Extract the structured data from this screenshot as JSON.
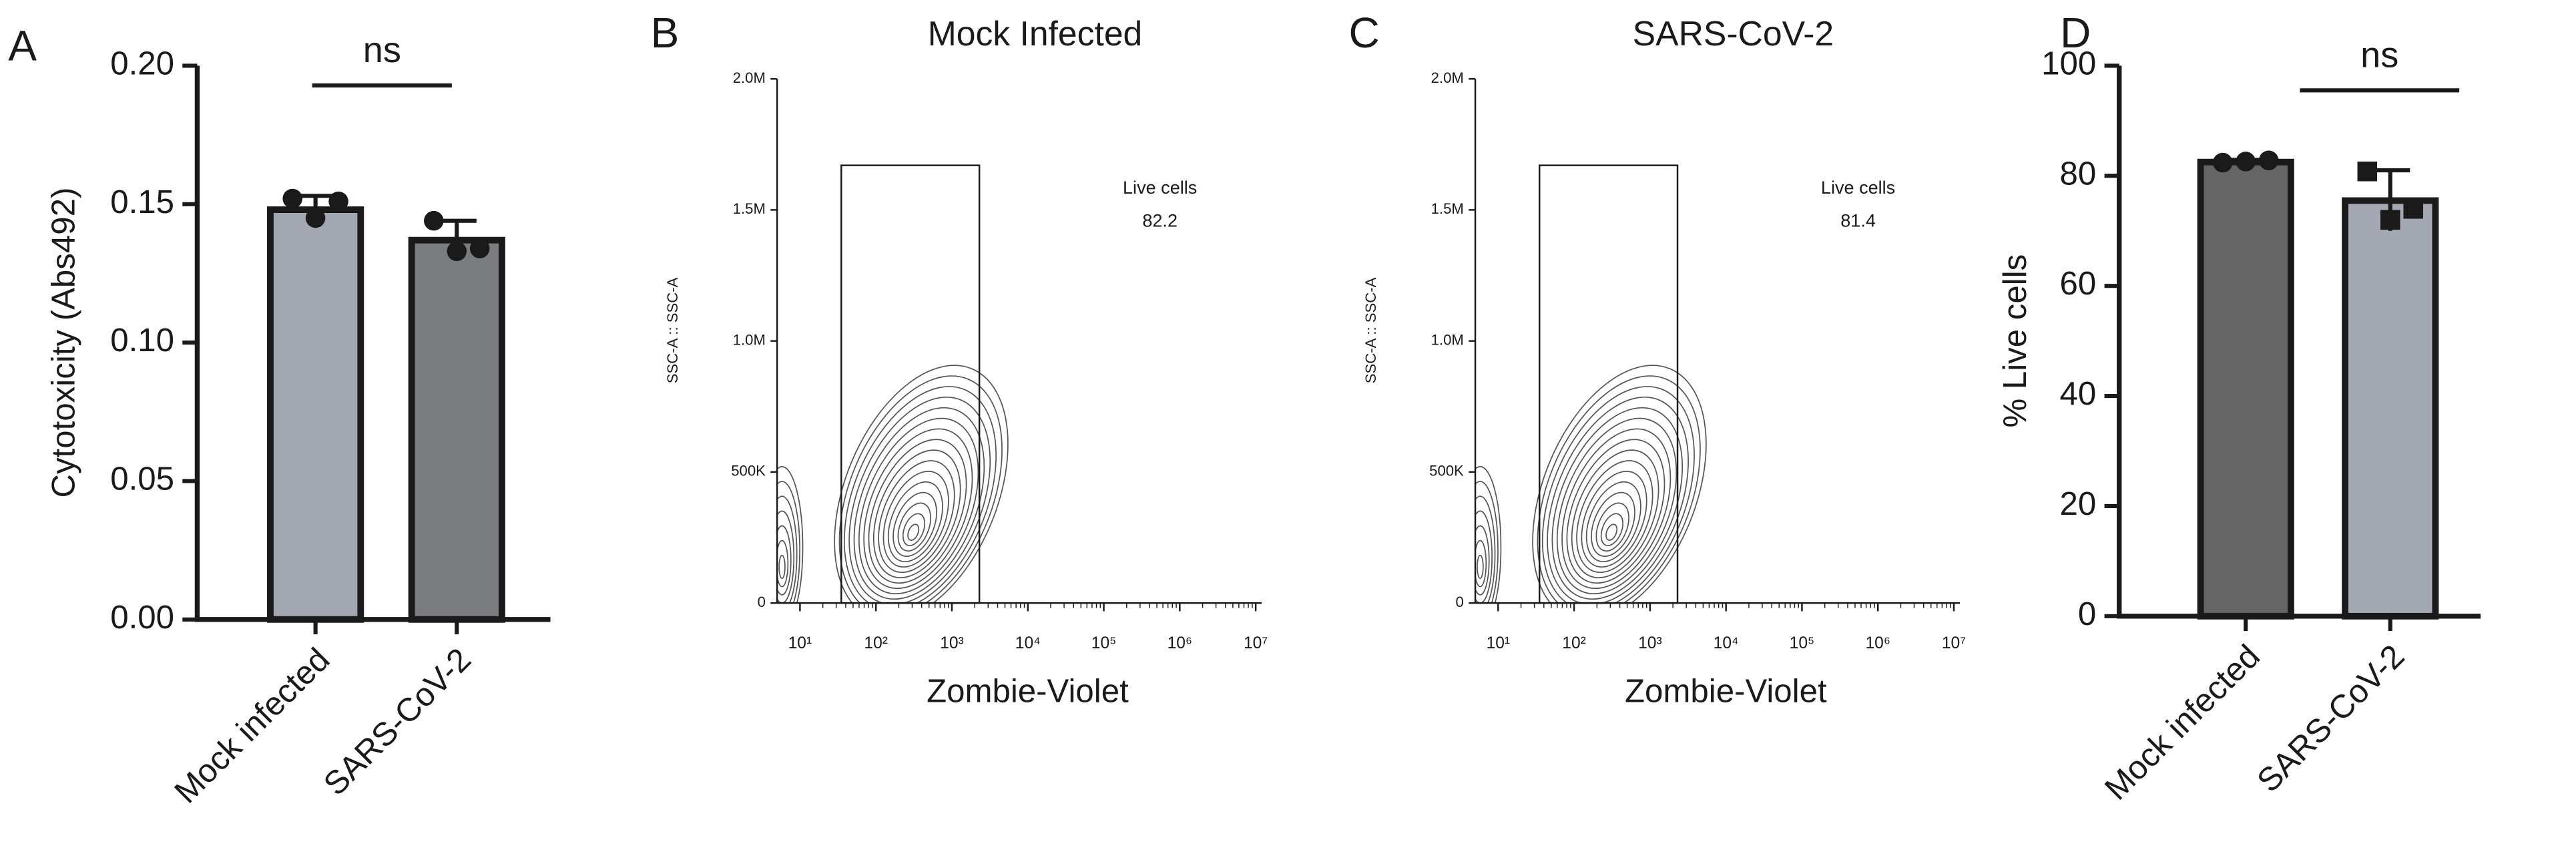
{
  "chart_data": [
    {
      "type": "bar",
      "panel_label": "A",
      "ylabel": "Cytotoxicity (Abs492)",
      "categories": [
        "Mock infected",
        "SARS-CoV-2"
      ],
      "values": [
        0.148,
        0.137
      ],
      "errors": [
        0.005,
        0.007
      ],
      "points": [
        [
          0.152,
          0.145,
          0.151
        ],
        [
          0.144,
          0.133,
          0.134
        ]
      ],
      "markers": [
        "circle",
        "circle"
      ],
      "colors": [
        "#a2a7b0",
        "#7b7c80"
      ],
      "ylim": [
        0,
        0.2
      ],
      "yticks": [
        {
          "value": 0,
          "label": "0.00"
        },
        {
          "value": 0.05,
          "label": "0.05"
        },
        {
          "value": 0.1,
          "label": "0.10"
        },
        {
          "value": 0.15,
          "label": "0.15"
        },
        {
          "value": 0.2,
          "label": "0.20"
        }
      ],
      "annotation": "ns"
    },
    {
      "type": "contour",
      "panel_label": "B",
      "title": "Mock Infected",
      "xlabel": "Zombie-Violet",
      "ylabel": "SSC-A :: SSC-A",
      "xscale": "log",
      "xlim": [
        5,
        12000000
      ],
      "xticks": [
        {
          "value": 10,
          "label": "10¹"
        },
        {
          "value": 100,
          "label": "10²"
        },
        {
          "value": 1000,
          "label": "10³"
        },
        {
          "value": 10000,
          "label": "10⁴"
        },
        {
          "value": 100000,
          "label": "10⁵"
        },
        {
          "value": 1000000,
          "label": "10⁶"
        },
        {
          "value": 10000000,
          "label": "10⁷"
        }
      ],
      "ylim": [
        0,
        2000000
      ],
      "yticks": [
        0,
        {
          "value": 500000,
          "label": "500K"
        },
        {
          "value": 1000000,
          "label": "1.0M"
        },
        {
          "value": 1500000,
          "label": "1.5M"
        },
        {
          "value": 2000000,
          "label": "2.0M"
        }
      ],
      "gate": {
        "name": "Live cells",
        "value": 82.2,
        "x": [
          35,
          2300
        ],
        "y": [
          0,
          1670000
        ]
      }
    },
    {
      "type": "contour",
      "panel_label": "C",
      "title": "SARS-CoV-2",
      "xlabel": "Zombie-Violet",
      "ylabel": "SSC-A :: SSC-A",
      "xscale": "log",
      "xlim": [
        5,
        12000000
      ],
      "xticks": [
        {
          "value": 10,
          "label": "10¹"
        },
        {
          "value": 100,
          "label": "10²"
        },
        {
          "value": 1000,
          "label": "10³"
        },
        {
          "value": 10000,
          "label": "10⁴"
        },
        {
          "value": 100000,
          "label": "10⁵"
        },
        {
          "value": 1000000,
          "label": "10⁶"
        },
        {
          "value": 10000000,
          "label": "10⁷"
        }
      ],
      "ylim": [
        0,
        2000000
      ],
      "yticks": [
        0,
        {
          "value": 500000,
          "label": "500K"
        },
        {
          "value": 1000000,
          "label": "1.0M"
        },
        {
          "value": 1500000,
          "label": "1.5M"
        },
        {
          "value": 2000000,
          "label": "2.0M"
        }
      ],
      "gate": {
        "name": "Live cells",
        "value": 81.4,
        "x": [
          35,
          2300
        ],
        "y": [
          0,
          1670000
        ]
      }
    },
    {
      "type": "bar",
      "panel_label": "D",
      "ylabel": "% Live cells",
      "categories": [
        "Mock infected",
        "SARS-CoV-2"
      ],
      "values": [
        82.5,
        75.5
      ],
      "errors": [
        0.4,
        5.5
      ],
      "points": [
        [
          82.4,
          82.6,
          82.8
        ],
        [
          80.8,
          72,
          74
        ]
      ],
      "markers": [
        "circle",
        "square"
      ],
      "colors": [
        "#656566",
        "#a3a8b2"
      ],
      "ylim": [
        0,
        100
      ],
      "yticks": [
        0,
        20,
        40,
        60,
        80,
        100
      ],
      "annotation": "ns"
    }
  ]
}
